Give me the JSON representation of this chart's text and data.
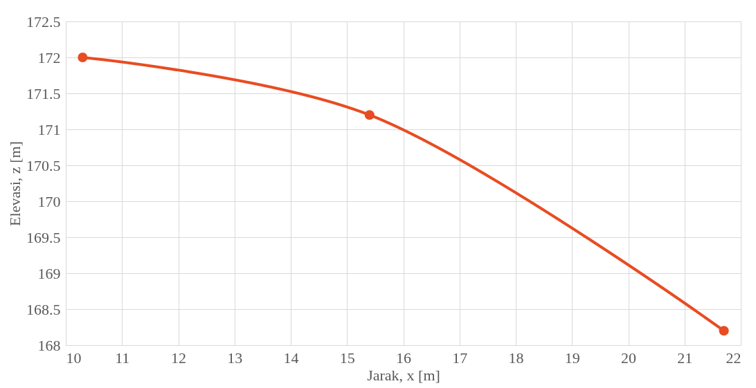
{
  "chart_data": {
    "type": "line",
    "xlabel": "Jarak, x [m]",
    "ylabel": "Elevasi, z [m]",
    "x": [
      10.3,
      15.4,
      21.7
    ],
    "series": [
      {
        "color": "#e84c22",
        "values": [
          172,
          171.2,
          168.2
        ]
      }
    ],
    "xlim": [
      10,
      22
    ],
    "xticks": [
      10,
      11,
      12,
      13,
      14,
      15,
      16,
      17,
      18,
      19,
      20,
      21,
      22
    ],
    "ylim": [
      168,
      172.5
    ],
    "yticks": [
      168,
      168.5,
      169,
      169.5,
      170,
      170.5,
      171,
      171.5,
      172,
      172.5
    ],
    "grid": true,
    "marker": "circle",
    "line_style": "solid"
  }
}
